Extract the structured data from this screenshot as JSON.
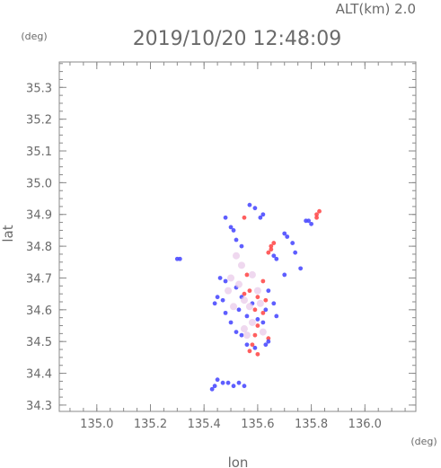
{
  "header": {
    "altitude_label": "ALT(km)  2.0",
    "timestamp": "2019/10/20 12:48:09"
  },
  "chart_data": {
    "type": "scatter",
    "xlabel": "lon",
    "ylabel": "lat",
    "x_unit": "(deg)",
    "y_unit": "(deg)",
    "xlim": [
      134.86,
      136.19
    ],
    "ylim": [
      34.28,
      35.38
    ],
    "x_ticks": [
      "135.0",
      "135.2",
      "135.4",
      "135.6",
      "135.8",
      "136.0"
    ],
    "y_ticks": [
      "34.3",
      "34.4",
      "34.5",
      "34.6",
      "34.7",
      "34.8",
      "34.9",
      "35.0",
      "35.1",
      "35.2",
      "35.3"
    ],
    "grid": false,
    "colors": {
      "positive": "#ff4d4d",
      "negative": "#4d4dff",
      "faint": "#e8c8e8"
    },
    "series": [
      {
        "points": [
          [
            135.83,
            34.91
          ],
          [
            135.82,
            34.9
          ],
          [
            135.82,
            34.89
          ],
          [
            135.65,
            34.79
          ],
          [
            135.64,
            34.78
          ],
          [
            135.66,
            34.81
          ],
          [
            135.65,
            34.8
          ],
          [
            135.6,
            34.64
          ],
          [
            135.63,
            34.63
          ],
          [
            135.59,
            34.6
          ],
          [
            135.62,
            34.59
          ],
          [
            135.55,
            34.65
          ],
          [
            135.57,
            34.66
          ],
          [
            135.59,
            34.52
          ],
          [
            135.64,
            34.51
          ],
          [
            135.57,
            34.47
          ],
          [
            135.6,
            34.46
          ],
          [
            135.55,
            34.89
          ],
          [
            135.56,
            34.71
          ],
          [
            135.62,
            34.69
          ],
          [
            135.6,
            34.55
          ],
          [
            135.58,
            34.49
          ]
        ]
      },
      {
        "points": [
          [
            135.79,
            34.88
          ],
          [
            135.8,
            34.87
          ],
          [
            135.78,
            34.88
          ],
          [
            135.66,
            34.77
          ],
          [
            135.67,
            34.76
          ],
          [
            135.3,
            34.76
          ],
          [
            135.31,
            34.76
          ],
          [
            135.46,
            34.7
          ],
          [
            135.48,
            34.69
          ],
          [
            135.45,
            34.64
          ],
          [
            135.47,
            34.63
          ],
          [
            135.44,
            34.62
          ],
          [
            135.52,
            34.67
          ],
          [
            135.54,
            34.64
          ],
          [
            135.53,
            34.6
          ],
          [
            135.56,
            34.58
          ],
          [
            135.58,
            34.62
          ],
          [
            135.6,
            34.57
          ],
          [
            135.63,
            34.6
          ],
          [
            135.62,
            34.56
          ],
          [
            135.52,
            34.53
          ],
          [
            135.54,
            34.52
          ],
          [
            135.56,
            34.49
          ],
          [
            135.59,
            34.48
          ],
          [
            135.63,
            34.49
          ],
          [
            135.64,
            34.5
          ],
          [
            135.45,
            34.38
          ],
          [
            135.47,
            34.37
          ],
          [
            135.49,
            34.37
          ],
          [
            135.51,
            34.36
          ],
          [
            135.53,
            34.37
          ],
          [
            135.43,
            34.35
          ],
          [
            135.44,
            34.36
          ],
          [
            135.55,
            34.36
          ],
          [
            135.5,
            34.86
          ],
          [
            135.51,
            34.85
          ],
          [
            135.48,
            34.89
          ],
          [
            135.61,
            34.89
          ],
          [
            135.62,
            34.9
          ],
          [
            135.7,
            34.84
          ],
          [
            135.71,
            34.83
          ],
          [
            135.73,
            34.81
          ],
          [
            135.74,
            34.78
          ],
          [
            135.76,
            34.73
          ],
          [
            135.64,
            34.66
          ],
          [
            135.66,
            34.62
          ],
          [
            135.67,
            34.58
          ],
          [
            135.5,
            34.56
          ],
          [
            135.48,
            34.59
          ],
          [
            135.57,
            34.93
          ],
          [
            135.59,
            34.92
          ],
          [
            135.52,
            34.82
          ],
          [
            135.54,
            34.8
          ],
          [
            135.7,
            34.71
          ]
        ]
      },
      {
        "points": [
          [
            135.5,
            34.7
          ],
          [
            135.53,
            34.68
          ],
          [
            135.55,
            34.63
          ],
          [
            135.57,
            34.61
          ],
          [
            135.51,
            34.61
          ],
          [
            135.58,
            34.56
          ],
          [
            135.55,
            34.54
          ],
          [
            135.6,
            34.66
          ],
          [
            135.61,
            34.62
          ],
          [
            135.54,
            34.74
          ],
          [
            135.52,
            34.77
          ],
          [
            135.58,
            34.71
          ],
          [
            135.49,
            34.66
          ],
          [
            135.62,
            34.53
          ],
          [
            135.56,
            34.52
          ]
        ]
      }
    ]
  }
}
